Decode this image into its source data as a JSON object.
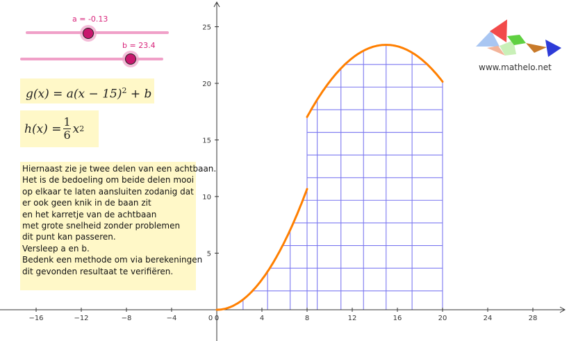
{
  "sliders": [
    {
      "label": "a = -0.13",
      "value": -0.13
    },
    {
      "label": "b = 23.4",
      "value": 23.4
    }
  ],
  "formulas": {
    "g_text": "g(x) = a(x − 15)",
    "g_exp": "2",
    "g_tail": " + b",
    "h_lhs": "h(x) =",
    "h_num": "1",
    "h_den": "6",
    "h_var": "x",
    "h_exp": "2"
  },
  "instructions": [
    "Hiernaast zie je twee delen van een achtbaan.",
    "Het is de bedoeling om beide delen mooi",
    "op elkaar te laten aansluiten zodanig dat",
    "er ook geen knik in de baan zit",
    "en het karretje van de achtbaan",
    "met grote snelheid zonder problemen",
    "dit punt kan passeren.",
    "Versleep a en b.",
    "Bedenk een methode om via berekeningen",
    "dit gevonden resultaat te verifiëren."
  ],
  "logo": {
    "text": "www.mathelo.net"
  },
  "colors": {
    "curve": "#ff7f00",
    "grid": "#7b78f0",
    "slider": "#e8457c",
    "textbox": "#fff8c8"
  },
  "chart_data": {
    "type": "line",
    "title": "",
    "xlabel": "",
    "ylabel": "",
    "xlim": [
      -19,
      31
    ],
    "ylim": [
      -0.5,
      27
    ],
    "x_ticks": [
      -16,
      -12,
      -8,
      -4,
      0,
      4,
      8,
      12,
      16,
      20,
      24,
      28
    ],
    "y_ticks": [
      5,
      10,
      15,
      20,
      25
    ],
    "series": [
      {
        "expr": "h(x) = x^2/6",
        "domain": [
          0,
          8
        ]
      },
      {
        "expr": "g(x) = a(x-15)^2 + b",
        "a": -0.13,
        "b": 23.4,
        "domain": [
          8,
          20
        ]
      }
    ],
    "columns_x": [
      0,
      2.33,
      4.5,
      6.5,
      8,
      8.9,
      11,
      13,
      15,
      17.3,
      20
    ],
    "rows_y": [
      1.67,
      3.67,
      5.67,
      7.67,
      9.67,
      11.67,
      13.67,
      15.67,
      17.67,
      19.67,
      21.67
    ]
  }
}
